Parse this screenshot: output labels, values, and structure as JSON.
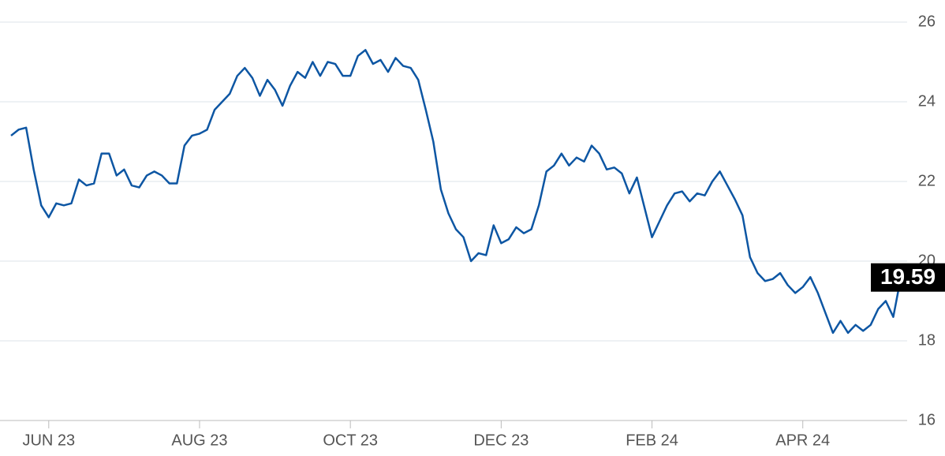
{
  "chart_data": {
    "type": "line",
    "categories": [
      null,
      null,
      null,
      null,
      null,
      "JUN 23",
      null,
      null,
      null,
      null,
      null,
      null,
      null,
      null,
      null,
      null,
      null,
      null,
      null,
      null,
      null,
      null,
      null,
      null,
      null,
      "AUG 23",
      null,
      null,
      null,
      null,
      null,
      null,
      null,
      null,
      null,
      null,
      null,
      null,
      null,
      null,
      null,
      null,
      null,
      null,
      null,
      "OCT 23",
      null,
      null,
      null,
      null,
      null,
      null,
      null,
      null,
      null,
      null,
      null,
      null,
      null,
      null,
      null,
      null,
      null,
      null,
      null,
      "DEC 23",
      null,
      null,
      null,
      null,
      null,
      null,
      null,
      null,
      null,
      null,
      null,
      null,
      null,
      null,
      null,
      null,
      null,
      null,
      null,
      "FEB 24",
      null,
      null,
      null,
      null,
      null,
      null,
      null,
      null,
      null,
      null,
      null,
      null,
      null,
      null,
      null,
      null,
      null,
      null,
      null,
      "APR 24",
      null,
      null,
      null,
      null,
      null,
      null,
      null,
      null,
      null,
      null,
      null,
      null,
      null
    ],
    "series": [
      {
        "color": "#0d56a3",
        "values": [
          23.15,
          23.3,
          23.35,
          22.3,
          21.4,
          21.1,
          21.45,
          21.4,
          21.45,
          22.05,
          21.9,
          21.95,
          22.7,
          22.7,
          22.15,
          22.3,
          21.9,
          21.85,
          22.15,
          22.25,
          22.15,
          21.95,
          21.95,
          22.9,
          23.15,
          23.2,
          23.3,
          23.8,
          24.0,
          24.2,
          24.65,
          24.85,
          24.6,
          24.15,
          24.55,
          24.3,
          23.9,
          24.4,
          24.75,
          24.6,
          25.0,
          24.65,
          25.0,
          24.95,
          24.65,
          24.65,
          25.15,
          25.3,
          24.95,
          25.05,
          24.75,
          25.1,
          24.9,
          24.85,
          24.55,
          23.8,
          23.0,
          21.8,
          21.2,
          20.8,
          20.6,
          20.0,
          20.2,
          20.15,
          20.9,
          20.45,
          20.55,
          20.85,
          20.7,
          20.8,
          21.4,
          22.25,
          22.4,
          22.7,
          22.4,
          22.6,
          22.5,
          22.9,
          22.7,
          22.3,
          22.35,
          22.2,
          21.7,
          22.1,
          21.35,
          20.6,
          21.0,
          21.4,
          21.7,
          21.75,
          21.5,
          21.7,
          21.65,
          22.0,
          22.25,
          21.9,
          21.55,
          21.15,
          20.1,
          19.7,
          19.5,
          19.55,
          19.7,
          19.4,
          19.2,
          19.35,
          19.6,
          19.2,
          18.7,
          18.2,
          18.5,
          18.2,
          18.4,
          18.25,
          18.4,
          18.8,
          19.0,
          18.6,
          19.59
        ]
      }
    ],
    "ylim": [
      16,
      26
    ],
    "yticks": [
      16,
      18,
      20,
      22,
      24,
      26
    ],
    "grid": true
  }
}
